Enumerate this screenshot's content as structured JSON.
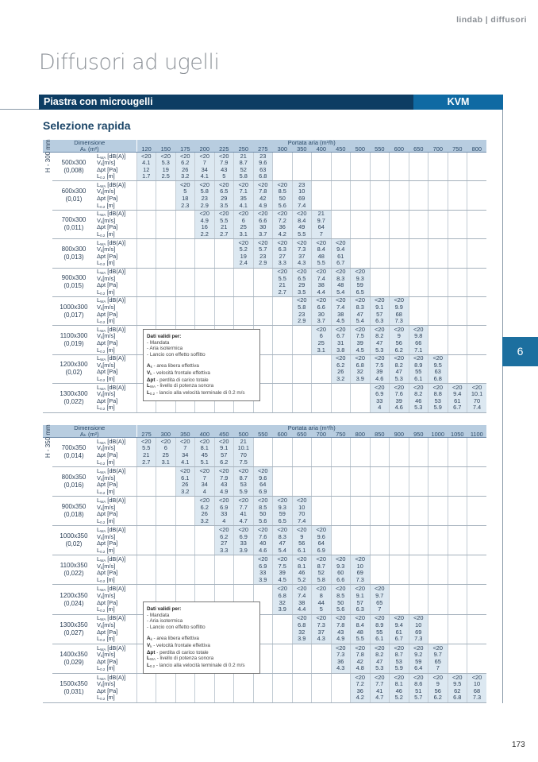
{
  "header": {
    "brand": "lindab | diffusori",
    "title": "Diffusori ad ugelli"
  },
  "bar": {
    "label": "Piastra con microugelli",
    "code": "KVM"
  },
  "section": "Selezione rapida",
  "side_tab": "6",
  "page_number": "173",
  "params": [
    {
      "main": "L",
      "sub": "WA",
      "unit": " [dB(A)]"
    },
    {
      "main": "V",
      "sub": "k",
      "unit": "[m/s]"
    },
    {
      "main": "Δpt",
      "sub": "",
      "unit": " [Pa]"
    },
    {
      "main": "L",
      "sub": "0.2",
      "unit": " [m]"
    }
  ],
  "info": {
    "title": "Dati validi per:",
    "conditions": [
      "- Mandata",
      "- Aria isotermica",
      "- Lancio con effetto soffitto"
    ],
    "legend": [
      {
        "sym": "A",
        "sub": "k",
        "text": " - area libera effettiva"
      },
      {
        "sym": "V",
        "sub": "k",
        "text": " - velocità frontale effettiva"
      },
      {
        "sym": "Δpt",
        "sub": "",
        "text": " - perdita di carico totale"
      },
      {
        "sym": "L",
        "sub": "WA",
        "text": " - livello di potenza sonora"
      },
      {
        "sym": "L",
        "sub": "0.2",
        "text": " - lancio alla velocità terminale di 0.2 m/s"
      }
    ]
  },
  "tables": [
    {
      "h_label": "H - 300 mm",
      "dim_header": "Dimensione",
      "ak_header": "Aₖ (m²)",
      "flow_header": "Portata aria (m³/h)",
      "flows": [
        "120",
        "150",
        "175",
        "200",
        "225",
        "250",
        "275",
        "300",
        "350",
        "400",
        "450",
        "500",
        "550",
        "600",
        "650",
        "700",
        "750",
        "800"
      ],
      "rows": [
        {
          "dim": "500x300",
          "area": "(0,008)",
          "start": 0,
          "v": [
            [
              "<20",
              "<20",
              "<20",
              "<20",
              "<20",
              "21",
              "23"
            ],
            [
              "4.1",
              "5.3",
              "6.2",
              "7",
              "7.9",
              "8.7",
              "9.6"
            ],
            [
              "12",
              "19",
              "26",
              "34",
              "43",
              "52",
              "63"
            ],
            [
              "1.7",
              "2.5",
              "3.2",
              "4.1",
              "5",
              "5.8",
              "6.8"
            ]
          ]
        },
        {
          "dim": "600x300",
          "area": "(0,01)",
          "start": 2,
          "v": [
            [
              "<20",
              "<20",
              "<20",
              "<20",
              "<20",
              "<20",
              "23"
            ],
            [
              "5",
              "5.8",
              "6.5",
              "7.1",
              "7.8",
              "8.5",
              "10"
            ],
            [
              "18",
              "23",
              "29",
              "35",
              "42",
              "50",
              "69"
            ],
            [
              "2.3",
              "2.9",
              "3.5",
              "4.1",
              "4.9",
              "5.6",
              "7.4"
            ]
          ]
        },
        {
          "dim": "700x300",
          "area": "(0,011)",
          "start": 3,
          "v": [
            [
              "<20",
              "<20",
              "<20",
              "<20",
              "<20",
              "<20",
              "21"
            ],
            [
              "4.9",
              "5.5",
              "6",
              "6.6",
              "7.2",
              "8.4",
              "9.7"
            ],
            [
              "16",
              "21",
              "25",
              "30",
              "36",
              "49",
              "64"
            ],
            [
              "2.2",
              "2.7",
              "3.1",
              "3.7",
              "4.2",
              "5.5",
              "7"
            ]
          ]
        },
        {
          "dim": "800x300",
          "area": "(0,013)",
          "start": 5,
          "v": [
            [
              "<20",
              "<20",
              "<20",
              "<20",
              "<20",
              "<20"
            ],
            [
              "5.2",
              "5.7",
              "6.3",
              "7.3",
              "8.4",
              "9.4"
            ],
            [
              "19",
              "23",
              "27",
              "37",
              "48",
              "61"
            ],
            [
              "2.4",
              "2.9",
              "3.3",
              "4.3",
              "5.5",
              "6.7"
            ]
          ]
        },
        {
          "dim": "900x300",
          "area": "(0,015)",
          "start": 7,
          "v": [
            [
              "<20",
              "<20",
              "<20",
              "<20",
              "<20"
            ],
            [
              "5.5",
              "6.5",
              "7.4",
              "8.3",
              "9.3"
            ],
            [
              "21",
              "29",
              "38",
              "48",
              "59"
            ],
            [
              "2.7",
              "3.5",
              "4.4",
              "5.4",
              "6.5"
            ]
          ]
        },
        {
          "dim": "1000x300",
          "area": "(0,017)",
          "start": 8,
          "v": [
            [
              "<20",
              "<20",
              "<20",
              "<20",
              "<20",
              "<20"
            ],
            [
              "5.8",
              "6.6",
              "7.4",
              "8.3",
              "9.1",
              "9.9"
            ],
            [
              "23",
              "30",
              "38",
              "47",
              "57",
              "68"
            ],
            [
              "2.9",
              "3.7",
              "4.5",
              "5.4",
              "6.3",
              "7.3"
            ]
          ]
        },
        {
          "dim": "1100x300",
          "area": "(0,019)",
          "start": 9,
          "v": [
            [
              "<20",
              "<20",
              "<20",
              "<20",
              "<20",
              "<20"
            ],
            [
              "6",
              "6.7",
              "7.5",
              "8.2",
              "9",
              "9.8"
            ],
            [
              "25",
              "31",
              "39",
              "47",
              "56",
              "66"
            ],
            [
              "3.1",
              "3.8",
              "4.5",
              "5.3",
              "6.2",
              "7.1"
            ]
          ]
        },
        {
          "dim": "1200x300",
          "area": "(0,02)",
          "start": 10,
          "v": [
            [
              "<20",
              "<20",
              "<20",
              "<20",
              "<20",
              "<20"
            ],
            [
              "6.2",
              "6.8",
              "7.5",
              "8.2",
              "8.9",
              "9.5"
            ],
            [
              "26",
              "32",
              "39",
              "47",
              "55",
              "63"
            ],
            [
              "3.2",
              "3.9",
              "4.6",
              "5.3",
              "6.1",
              "6.8"
            ]
          ]
        },
        {
          "dim": "1300x300",
          "area": "(0,022)",
          "start": 12,
          "v": [
            [
              "<20",
              "<20",
              "<20",
              "<20",
              "<20",
              "<20"
            ],
            [
              "6.9",
              "7.6",
              "8.2",
              "8.8",
              "9.4",
              "10.1"
            ],
            [
              "33",
              "39",
              "46",
              "53",
              "61",
              "70"
            ],
            [
              "4",
              "4.6",
              "5.3",
              "5.9",
              "6.7",
              "7.4"
            ]
          ]
        }
      ]
    },
    {
      "h_label": "H - 350 mm",
      "dim_header": "Dimensione",
      "ak_header": "Aₖ (m²)",
      "flow_header": "Portata aria (m³/h)",
      "flows": [
        "275",
        "300",
        "350",
        "400",
        "450",
        "500",
        "550",
        "600",
        "650",
        "700",
        "750",
        "800",
        "850",
        "900",
        "950",
        "1000",
        "1050",
        "1100"
      ],
      "rows": [
        {
          "dim": "700x350",
          "area": "(0,014)",
          "start": 0,
          "v": [
            [
              "<20",
              "<20",
              "<20",
              "<20",
              "<20",
              "21"
            ],
            [
              "5.5",
              "6",
              "7",
              "8.1",
              "9.1",
              "10.1"
            ],
            [
              "21",
              "25",
              "34",
              "45",
              "57",
              "70"
            ],
            [
              "2.7",
              "3.1",
              "4.1",
              "5.1",
              "6.2",
              "7.5"
            ]
          ]
        },
        {
          "dim": "800x350",
          "area": "(0,016)",
          "start": 2,
          "v": [
            [
              "<20",
              "<20",
              "<20",
              "<20",
              "<20"
            ],
            [
              "6.1",
              "7",
              "7.9",
              "8.7",
              "9.6"
            ],
            [
              "26",
              "34",
              "43",
              "53",
              "64"
            ],
            [
              "3.2",
              "4",
              "4.9",
              "5.9",
              "6.9"
            ]
          ]
        },
        {
          "dim": "900x350",
          "area": "(0,018)",
          "start": 3,
          "v": [
            [
              "<20",
              "<20",
              "<20",
              "<20",
              "<20",
              "<20"
            ],
            [
              "6.2",
              "6.9",
              "7.7",
              "8.5",
              "9.3",
              "10"
            ],
            [
              "26",
              "33",
              "41",
              "50",
              "59",
              "70"
            ],
            [
              "3.2",
              "4",
              "4.7",
              "5.6",
              "6.5",
              "7.4"
            ]
          ]
        },
        {
          "dim": "1000x350",
          "area": "(0,02)",
          "start": 4,
          "v": [
            [
              "<20",
              "<20",
              "<20",
              "<20",
              "<20",
              "<20"
            ],
            [
              "6.2",
              "6.9",
              "7.6",
              "8.3",
              "9",
              "9.6"
            ],
            [
              "27",
              "33",
              "40",
              "47",
              "56",
              "64"
            ],
            [
              "3.3",
              "3.9",
              "4.6",
              "5.4",
              "6.1",
              "6.9"
            ]
          ]
        },
        {
          "dim": "1100x350",
          "area": "(0,022)",
          "start": 6,
          "v": [
            [
              "<20",
              "<20",
              "<20",
              "<20",
              "<20",
              "<20"
            ],
            [
              "6.9",
              "7.5",
              "8.1",
              "8.7",
              "9.3",
              "10"
            ],
            [
              "33",
              "39",
              "46",
              "52",
              "60",
              "69"
            ],
            [
              "3.9",
              "4.5",
              "5.2",
              "5.8",
              "6.6",
              "7.3"
            ]
          ]
        },
        {
          "dim": "1200x350",
          "area": "(0,024)",
          "start": 7,
          "v": [
            [
              "<20",
              "<20",
              "<20",
              "<20",
              "<20",
              "<20"
            ],
            [
              "6.8",
              "7.4",
              "8",
              "8.5",
              "9.1",
              "9.7"
            ],
            [
              "32",
              "38",
              "44",
              "50",
              "57",
              "65"
            ],
            [
              "3.9",
              "4.4",
              "5",
              "5.6",
              "6.3",
              "7"
            ]
          ]
        },
        {
          "dim": "1300x350",
          "area": "(0,027)",
          "start": 8,
          "v": [
            [
              "<20",
              "<20",
              "<20",
              "<20",
              "<20",
              "<20",
              "<20"
            ],
            [
              "6.8",
              "7.3",
              "7.8",
              "8.4",
              "8.9",
              "9.4",
              "10"
            ],
            [
              "32",
              "37",
              "43",
              "48",
              "55",
              "61",
              "69"
            ],
            [
              "3.9",
              "4.3",
              "4.9",
              "5.5",
              "6.1",
              "6.7",
              "7.3"
            ]
          ]
        },
        {
          "dim": "1400x350",
          "area": "(0,029)",
          "start": 10,
          "v": [
            [
              "<20",
              "<20",
              "<20",
              "<20",
              "<20",
              "<20"
            ],
            [
              "7.3",
              "7.8",
              "8.2",
              "8.7",
              "9.2",
              "9.7"
            ],
            [
              "36",
              "42",
              "47",
              "53",
              "59",
              "65"
            ],
            [
              "4.3",
              "4.8",
              "5.3",
              "5.9",
              "6.4",
              "7"
            ]
          ]
        },
        {
          "dim": "1500x350",
          "area": "(0,031)",
          "start": 11,
          "v": [
            [
              "<20",
              "<20",
              "<20",
              "<20",
              "<20",
              "<20",
              "<20"
            ],
            [
              "7.2",
              "7.7",
              "8.1",
              "8.6",
              "9",
              "9.5",
              "10"
            ],
            [
              "36",
              "41",
              "46",
              "51",
              "56",
              "62",
              "68"
            ],
            [
              "4.2",
              "4.7",
              "5.2",
              "5.7",
              "6.2",
              "6.8",
              "7.3"
            ]
          ]
        }
      ]
    }
  ]
}
